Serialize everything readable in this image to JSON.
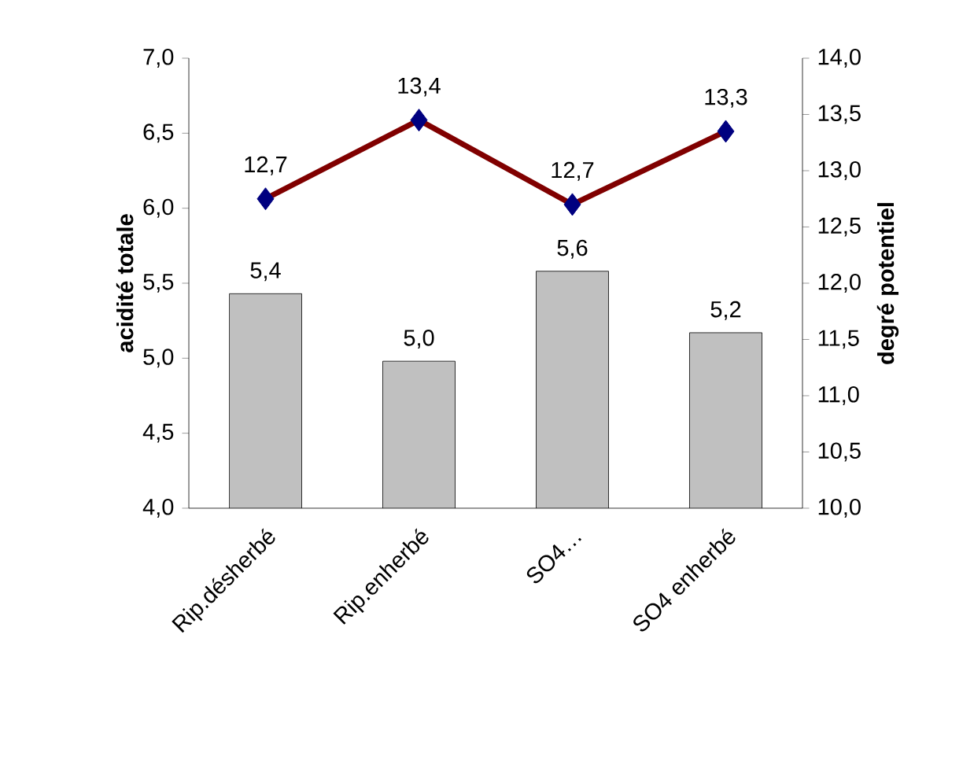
{
  "chart_data": {
    "type": "bar",
    "ylabel": "acidité totale",
    "y2label": "degré potentiel",
    "categories": [
      "Rip.désherbé",
      "Rip.enherbé",
      "SO4…",
      "SO4 enherbé"
    ],
    "series": [
      {
        "color": "#c0c0c0",
        "values": [
          5.43,
          4.98,
          5.58,
          5.17
        ],
        "value_labels": [
          "5,4",
          "5,0",
          "5,6",
          "5,2"
        ]
      },
      {
        "type": "line",
        "axis": "y2",
        "color": "#800000",
        "marker": "diamond",
        "values": [
          12.75,
          13.45,
          12.7,
          13.35
        ],
        "value_labels": [
          "12,7",
          "13,4",
          "12,7",
          "13,3"
        ]
      }
    ],
    "ylim": [
      4,
      7
    ],
    "yticks": [
      {
        "value": 4,
        "label": "4,0"
      },
      {
        "value": 4.5,
        "label": "4,5"
      },
      {
        "value": 5,
        "label": "5,0"
      },
      {
        "value": 5.5,
        "label": "5,5"
      },
      {
        "value": 6,
        "label": "6,0"
      },
      {
        "value": 6.5,
        "label": "6,5"
      },
      {
        "value": 7,
        "label": "7,0"
      }
    ],
    "y2lim": [
      10,
      14
    ],
    "y2ticks": [
      {
        "value": 10,
        "label": "10,0"
      },
      {
        "value": 10.5,
        "label": "10,5"
      },
      {
        "value": 11,
        "label": "11,0"
      },
      {
        "value": 11.5,
        "label": "11,5"
      },
      {
        "value": 12,
        "label": "12,0"
      },
      {
        "value": 12.5,
        "label": "12,5"
      },
      {
        "value": 13,
        "label": "13,0"
      },
      {
        "value": 13.5,
        "label": "13,5"
      },
      {
        "value": 14,
        "label": "14,0"
      }
    ],
    "grid": false
  }
}
